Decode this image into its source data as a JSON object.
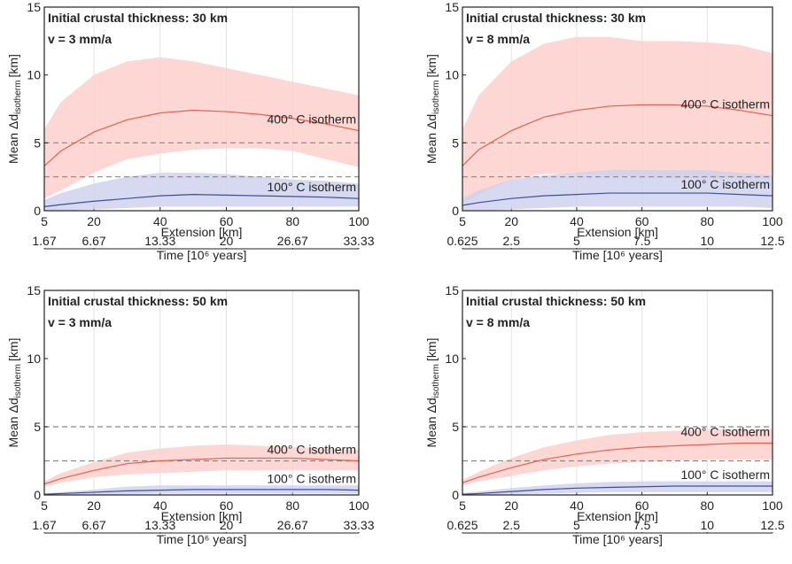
{
  "chart_data": [
    {
      "type": "line",
      "title": "Initial crustal thickness: 30 km",
      "subtitle": "v = 3 mm/a",
      "ylabel": "Mean Δd",
      "ylabel_sub": "isotherm",
      "ylabel_unit": "[km]",
      "xlabel": "Extension [km]",
      "x2label": "Time [10⁶ years]",
      "x": [
        5,
        10,
        20,
        30,
        40,
        50,
        60,
        70,
        80,
        90,
        100
      ],
      "xlim": [
        5,
        100
      ],
      "xticks": [
        5,
        20,
        40,
        60,
        80,
        100
      ],
      "ylim": [
        0,
        15
      ],
      "yticks": [
        0,
        5,
        10,
        15
      ],
      "x2lim": [
        1.67,
        33.33
      ],
      "x2ticks": [
        1.67,
        6.67,
        13.33,
        20,
        26.67,
        33.33
      ],
      "hlines": [
        2.5,
        5
      ],
      "grid": "x",
      "series": [
        {
          "name": "400° C isotherm",
          "color": "#e8604c",
          "band_color": "#fbd0cb",
          "values": [
            3.3,
            4.4,
            5.8,
            6.7,
            7.2,
            7.4,
            7.3,
            7.1,
            6.8,
            6.4,
            5.9
          ],
          "lower": [
            0.9,
            1.5,
            2.8,
            3.8,
            4.2,
            4.5,
            4.6,
            4.6,
            4.4,
            3.8,
            3.2
          ],
          "upper": [
            6,
            8,
            10,
            11,
            11.3,
            11,
            10.5,
            10,
            9.5,
            9,
            8.5
          ]
        },
        {
          "name": "100° C isotherm",
          "color": "#3c4fa0",
          "band_color": "#cfd2ec",
          "values": [
            0.3,
            0.45,
            0.7,
            0.9,
            1.1,
            1.2,
            1.15,
            1.1,
            1.05,
            1,
            0.9
          ],
          "lower": [
            0,
            0,
            0.1,
            0.2,
            0.3,
            0.3,
            0.3,
            0.3,
            0.3,
            0.3,
            0.3
          ],
          "upper": [
            0.8,
            1.3,
            2,
            2.5,
            2.8,
            2.8,
            2.7,
            2.5,
            2.3,
            2.2,
            2
          ]
        }
      ]
    },
    {
      "type": "line",
      "title": "Initial crustal thickness: 30 km",
      "subtitle": "v = 8 mm/a",
      "ylabel": "Mean Δd",
      "ylabel_sub": "isotherm",
      "ylabel_unit": "[km]",
      "xlabel": "Extension [km]",
      "x2label": "Time [10⁶ years]",
      "x": [
        5,
        10,
        20,
        30,
        40,
        50,
        60,
        70,
        80,
        90,
        100
      ],
      "xlim": [
        5,
        100
      ],
      "xticks": [
        5,
        20,
        40,
        60,
        80,
        100
      ],
      "ylim": [
        0,
        15
      ],
      "yticks": [
        0,
        5,
        10,
        15
      ],
      "x2lim": [
        0.625,
        12.5
      ],
      "x2ticks": [
        0.625,
        2.5,
        5,
        7.5,
        10,
        12.5
      ],
      "hlines": [
        2.5,
        5
      ],
      "grid": "x",
      "series": [
        {
          "name": "400° C isotherm",
          "color": "#e8604c",
          "band_color": "#fbd0cb",
          "values": [
            3.3,
            4.5,
            5.9,
            6.9,
            7.4,
            7.7,
            7.8,
            7.8,
            7.7,
            7.4,
            7
          ],
          "lower": [
            0.5,
            1.2,
            2.3,
            2.7,
            2.7,
            2.6,
            2.5,
            2.4,
            2.4,
            2.4,
            2.4
          ],
          "upper": [
            6,
            8.5,
            11,
            12.3,
            12.8,
            12.8,
            12.5,
            12.5,
            12.4,
            12.2,
            11.6
          ]
        },
        {
          "name": "100° C isotherm",
          "color": "#3c4fa0",
          "band_color": "#cfd2ec",
          "values": [
            0.4,
            0.6,
            0.9,
            1.1,
            1.2,
            1.3,
            1.3,
            1.3,
            1.3,
            1.2,
            1.1
          ],
          "lower": [
            0,
            0,
            0.1,
            0.2,
            0.3,
            0.3,
            0.3,
            0.3,
            0.3,
            0.3,
            0.2
          ],
          "upper": [
            0.9,
            1.5,
            2.3,
            2.6,
            2.8,
            3,
            3,
            3,
            3,
            2.8,
            2.6
          ]
        }
      ]
    },
    {
      "type": "line",
      "title": "Initial crustal thickness: 50 km",
      "subtitle": "v = 3 mm/a",
      "ylabel": "Mean Δd",
      "ylabel_sub": "isotherm",
      "ylabel_unit": "[km]",
      "xlabel": "Extension [km]",
      "x2label": "Time [10⁶ years]",
      "x": [
        5,
        10,
        20,
        30,
        40,
        50,
        60,
        70,
        80,
        90,
        100
      ],
      "xlim": [
        5,
        100
      ],
      "xticks": [
        5,
        20,
        40,
        60,
        80,
        100
      ],
      "ylim": [
        0,
        15
      ],
      "yticks": [
        0,
        5,
        10,
        15
      ],
      "x2lim": [
        1.67,
        33.33
      ],
      "x2ticks": [
        1.67,
        6.67,
        13.33,
        20,
        26.67,
        33.33
      ],
      "hlines": [
        2.5,
        5
      ],
      "grid": "x",
      "series": [
        {
          "name": "400° C isotherm",
          "color": "#e8604c",
          "band_color": "#fbd0cb",
          "values": [
            0.8,
            1.2,
            1.8,
            2.3,
            2.5,
            2.6,
            2.7,
            2.7,
            2.7,
            2.6,
            2.5
          ],
          "lower": [
            0.6,
            0.9,
            1.3,
            1.5,
            1.6,
            1.7,
            1.8,
            1.8,
            1.8,
            1.8,
            1.8
          ],
          "upper": [
            1,
            1.6,
            2.4,
            3.1,
            3.4,
            3.6,
            3.7,
            3.6,
            3.5,
            3.4,
            3.3
          ]
        },
        {
          "name": "100° C isotherm",
          "color": "#3c4fa0",
          "band_color": "#cfd2ec",
          "values": [
            0.05,
            0.1,
            0.2,
            0.3,
            0.35,
            0.4,
            0.4,
            0.4,
            0.4,
            0.4,
            0.35
          ],
          "lower": [
            0,
            0,
            0,
            0.05,
            0.1,
            0.1,
            0.1,
            0.1,
            0.1,
            0.1,
            0.1
          ],
          "upper": [
            0.1,
            0.2,
            0.4,
            0.6,
            0.7,
            0.7,
            0.7,
            0.7,
            0.7,
            0.7,
            0.7
          ]
        }
      ]
    },
    {
      "type": "line",
      "title": "Initial crustal thickness: 50 km",
      "subtitle": "v = 8 mm/a",
      "ylabel": "Mean Δd",
      "ylabel_sub": "isotherm",
      "ylabel_unit": "[km]",
      "xlabel": "Extension [km]",
      "x2label": "Time [10⁶ years]",
      "x": [
        5,
        10,
        20,
        30,
        40,
        50,
        60,
        70,
        80,
        90,
        100
      ],
      "xlim": [
        5,
        100
      ],
      "xticks": [
        5,
        20,
        40,
        60,
        80,
        100
      ],
      "ylim": [
        0,
        15
      ],
      "yticks": [
        0,
        5,
        10,
        15
      ],
      "x2lim": [
        0.625,
        12.5
      ],
      "x2ticks": [
        0.625,
        2.5,
        5,
        7.5,
        10,
        12.5
      ],
      "hlines": [
        2.5,
        5
      ],
      "grid": "x",
      "series": [
        {
          "name": "400° C isotherm",
          "color": "#e8604c",
          "band_color": "#fbd0cb",
          "values": [
            0.9,
            1.3,
            2,
            2.6,
            3,
            3.3,
            3.5,
            3.6,
            3.7,
            3.8,
            3.8
          ],
          "lower": [
            0.7,
            1,
            1.4,
            1.8,
            2.1,
            2.3,
            2.4,
            2.5,
            2.6,
            2.6,
            2.6
          ],
          "upper": [
            1.1,
            1.7,
            2.7,
            3.5,
            4,
            4.4,
            4.6,
            4.7,
            4.8,
            4.8,
            4.8
          ]
        },
        {
          "name": "100° C isotherm",
          "color": "#3c4fa0",
          "band_color": "#cfd2ec",
          "values": [
            0.05,
            0.1,
            0.25,
            0.4,
            0.5,
            0.55,
            0.6,
            0.65,
            0.65,
            0.65,
            0.65
          ],
          "lower": [
            0,
            0,
            0.05,
            0.1,
            0.15,
            0.2,
            0.2,
            0.2,
            0.2,
            0.2,
            0.2
          ],
          "upper": [
            0.15,
            0.25,
            0.5,
            0.7,
            0.85,
            0.95,
            1,
            1,
            1,
            1,
            1
          ]
        }
      ]
    }
  ]
}
